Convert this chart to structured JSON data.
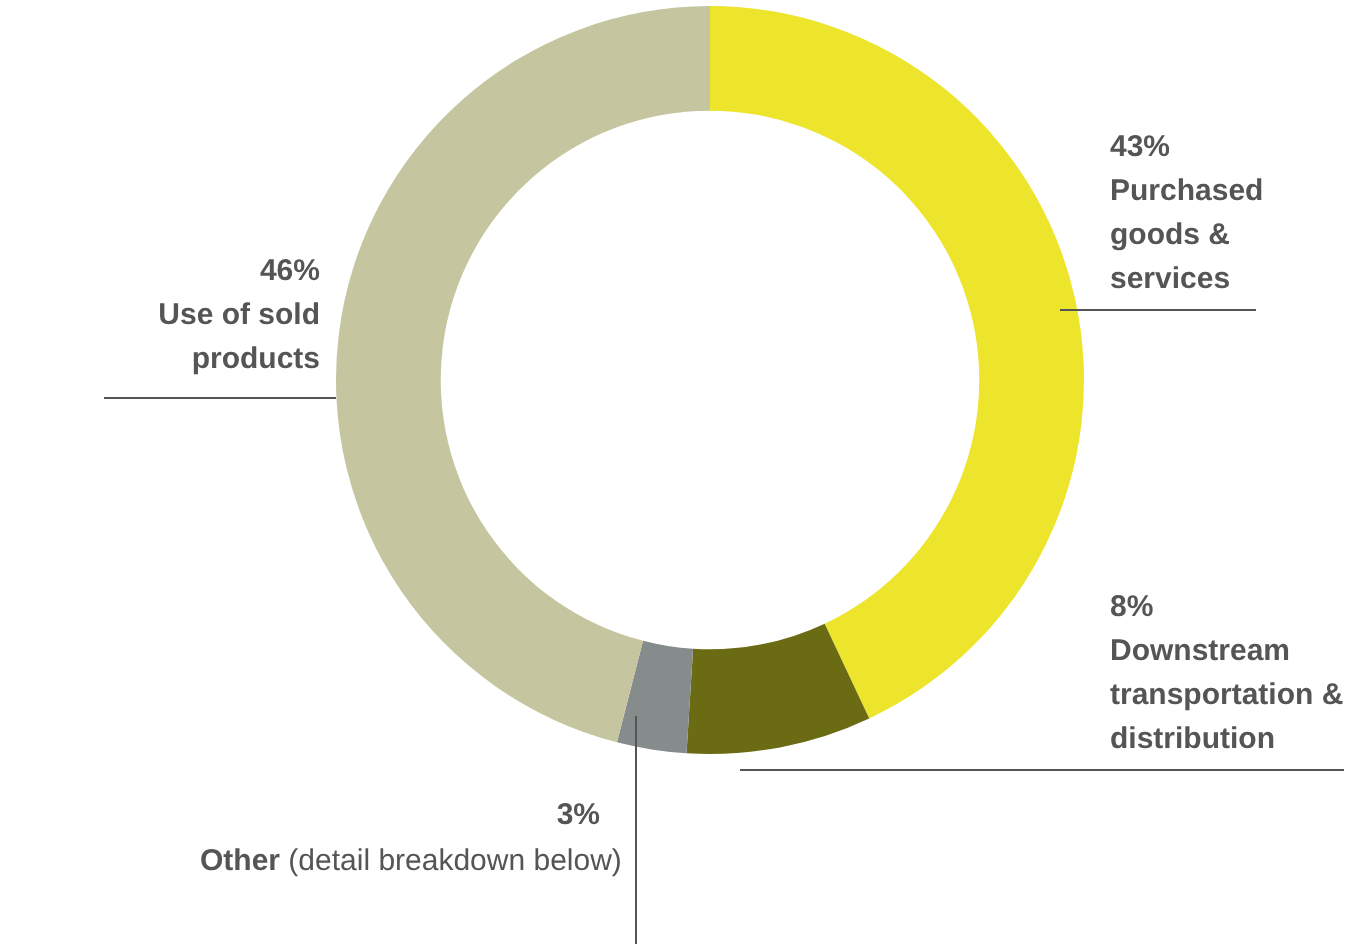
{
  "chart_data": {
    "type": "donut",
    "categories": [
      "Purchased goods & services",
      "Downstream transportation & distribution",
      "Other (detail breakdown below)",
      "Use of sold products"
    ],
    "values": [
      43,
      8,
      3,
      46
    ],
    "value_labels": [
      "43%",
      "8%",
      "3%",
      "46%"
    ],
    "colors": [
      "#ede42c",
      "#6b6b14",
      "#868b8c",
      "#c5c5a0"
    ],
    "legend": false
  }
}
